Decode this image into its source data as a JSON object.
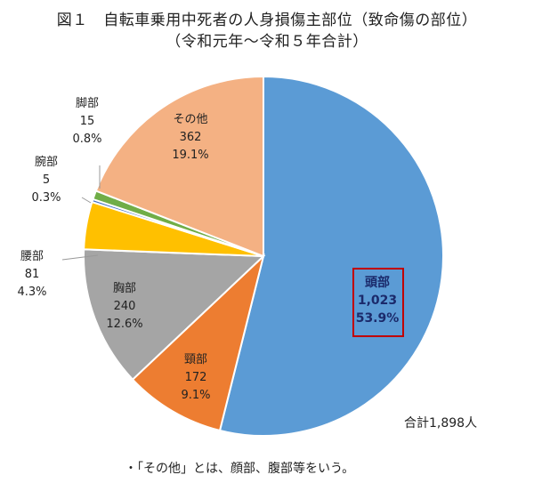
{
  "chart_data": {
    "type": "pie",
    "title": "図１　自転車乗用中死者の人身損傷主部位（致命傷の部位）",
    "subtitle": "（令和元年～令和５年合計）",
    "slices": [
      {
        "name": "頭部",
        "value": 1023,
        "percent_label": "53.9%",
        "value_label": "1,023",
        "color": "#5b9bd5"
      },
      {
        "name": "頸部",
        "value": 172,
        "percent_label": "9.1%",
        "value_label": "172",
        "color": "#ed7d31"
      },
      {
        "name": "胸部",
        "value": 240,
        "percent_label": "12.6%",
        "value_label": "240",
        "color": "#a5a5a5"
      },
      {
        "name": "腰部",
        "value": 81,
        "percent_label": "4.3%",
        "value_label": "81",
        "color": "#ffc000"
      },
      {
        "name": "腕部",
        "value": 5,
        "percent_label": "0.3%",
        "value_label": "5",
        "color": "#4472c4"
      },
      {
        "name": "脚部",
        "value": 15,
        "percent_label": "0.8%",
        "value_label": "15",
        "color": "#70ad47"
      },
      {
        "name": "その他",
        "value": 362,
        "percent_label": "19.1%",
        "value_label": "362",
        "color": "#f4b183"
      }
    ],
    "total_label": "合計1,898人",
    "note": "・「その他」とは、顔部、腹部等をいう。",
    "highlight": "頭部"
  }
}
